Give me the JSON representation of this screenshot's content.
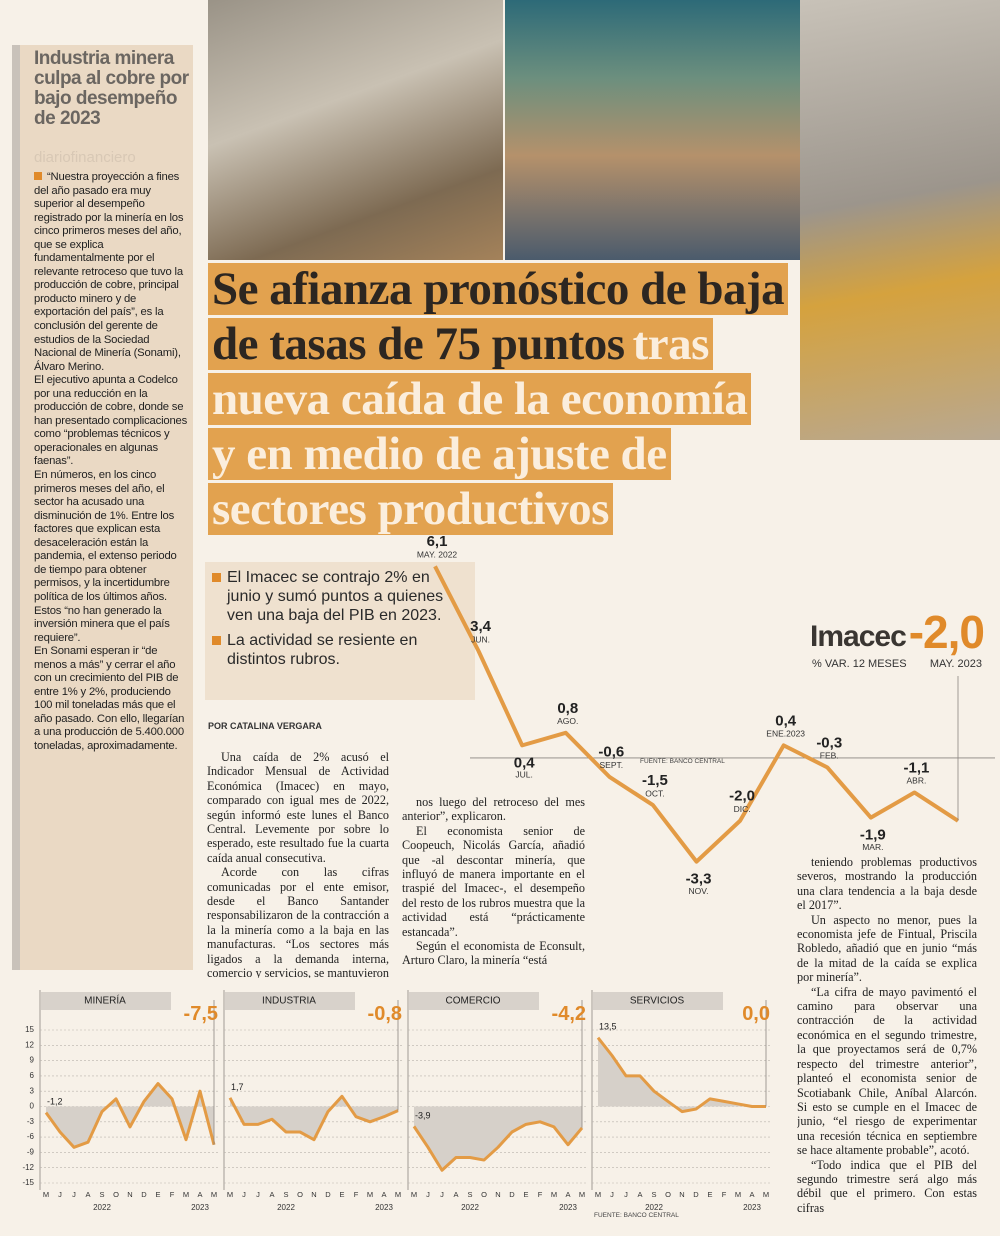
{
  "sidebar": {
    "title": "Industria minera culpa al cobre por bajo desempeño de 2023",
    "watermark": "diariofinanciero",
    "paragraphs": [
      "“Nuestra proyección a fines del año pasado era muy superior al desempeño registrado por la minería en los cinco primeros meses del año, que se explica fundamentalmente por el relevante retroceso que tuvo la producción de cobre, principal producto minero y de exportación del país”, es la conclusión del gerente de estudios de la Sociedad Nacional de Minería (Sonami), Álvaro Merino.",
      "El ejecutivo apunta a Codelco por una reducción en la producción de cobre, donde se han presentado complicaciones como “problemas técnicos y operacionales en algunas faenas”.",
      "En números, en los cinco primeros meses del año, el sector ha acusado una disminución de 1%. Entre los factores que explican esta desaceleración están la pandemia, el extenso periodo de tiempo para obtener permisos, y la incertidumbre política de los últimos años. Estos “no han generado la inversión minera que el país requiere”.",
      "En Sonami esperan ir “de menos a más” y cerrar el año con un crecimiento del PIB de entre 1% y 2%, produciendo 100 mil toneladas más que el año pasado. Con ello, llegarían a una producción de 5.400.000 toneladas, aproximadamente."
    ]
  },
  "headline": {
    "dark": [
      "Se afianza pronóstico de baja",
      "de tasas de 75 puntos"
    ],
    "light": [
      "tras",
      "nueva caída de la economía",
      "y en medio de ajuste de",
      "sectores productivos"
    ]
  },
  "bullets": [
    "El Imacec se contrajo 2% en junio y sumó puntos a quienes ven una baja del PIB en 2023.",
    "La actividad se resiente en distintos rubros."
  ],
  "byline": "POR CATALINA VERGARA",
  "columns": [
    [
      "Una caída de 2% acusó el Indicador Mensual de Actividad Económica (Imacec) en mayo, comparado con igual mes de 2022, según informó este lunes el Banco Central. Levemente por sobre lo esperado, este resultado fue la cuarta caída anual consecutiva.",
      "Acorde con las cifras comunicadas por el ente emisor, desde el Banco Santander responsabilizaron de la contracción a la la minería como a la baja en las manufacturas. “Los sectores más ligados a la demanda interna, comercio y servicios, se mantuvieron prácticamente pla-"
    ],
    [
      "nos luego del retroceso del mes anterior”, explicaron.",
      "El economista senior de Coopeuch, Nicolás García, añadió que -al descontar minería, que influyó de manera importante en el traspié del Imacec-, el desempeño del resto de los rubros muestra que la actividad está “prácticamente estancada”.",
      "Según el economista de Econsult, Arturo Claro, la minería “está"
    ],
    [
      "teniendo problemas productivos severos, mostrando la producción una clara tendencia a la baja desde el 2017”.",
      "Un aspecto no menor, pues la economista jefe de Fintual, Priscila Robledo, añadió que en junio “más de la mitad de la caída se explica por minería”.",
      "“La cifra de mayo pavimentó el camino para observar una contracción de la actividad económica en el segundo trimestre, la que proyectamos será de 0,7% respecto del trimestre anterior”, planteó el economista senior de Scotiabank Chile, Aníbal Alarcón. Si esto se cumple en el Imacec de junio, “el riesgo de experimentar una recesión técnica en septiembre se hace altamente probable”, acotó.",
      "“Todo indica que el PIB del segundo trimestre será algo más débil que el primero. Con estas cifras"
    ]
  ],
  "chart_data": [
    {
      "type": "line",
      "title": "Imacec",
      "subtitle": "% VAR. 12 MESES",
      "source": "FUENTE: BANCO CENTRAL",
      "categories": [
        "MAY. 2022",
        "JUN.",
        "JUL.",
        "AGO.",
        "SEPT.",
        "OCT.",
        "NOV.",
        "DIC.",
        "ENE.2023",
        "FEB.",
        "MAR.",
        "ABR.",
        "MAY. 2023"
      ],
      "values": [
        6.1,
        3.4,
        0.4,
        0.8,
        -0.6,
        -1.5,
        -3.3,
        -2.0,
        0.4,
        -0.3,
        -1.9,
        -1.1,
        -2.0
      ],
      "value_labels": [
        "6,1",
        "3,4",
        "0,4",
        "0,8",
        "-0,6",
        "-1,5",
        "-3,3",
        "-2,0",
        "0,4",
        "-0,3",
        "-1,9",
        "-1,1",
        "-2,0"
      ],
      "ylim": [
        -4,
        7
      ],
      "color": "#e39b45"
    },
    {
      "type": "area",
      "title": "MINERÍA",
      "categories": [
        "M",
        "J",
        "J",
        "A",
        "S",
        "O",
        "N",
        "D",
        "E",
        "F",
        "M",
        "A",
        "M"
      ],
      "year_labels": [
        "2022",
        "2023"
      ],
      "values": [
        -1.2,
        -5,
        -8,
        -7,
        -1,
        1.5,
        -4,
        1,
        4.5,
        1.5,
        -6.5,
        3,
        -7.5
      ],
      "value_labels": [
        "-1,2",
        null,
        null,
        null,
        null,
        null,
        null,
        null,
        null,
        null,
        null,
        null,
        "-7,5"
      ],
      "ylim": [
        -15,
        15
      ],
      "yticks": [
        15,
        12,
        9,
        6,
        3,
        0,
        -3,
        -6,
        -9,
        -12,
        -15
      ],
      "grid": true,
      "color": "#e39b45"
    },
    {
      "type": "area",
      "title": "INDUSTRIA",
      "categories": [
        "M",
        "J",
        "J",
        "A",
        "S",
        "O",
        "N",
        "D",
        "E",
        "F",
        "M",
        "A",
        "M"
      ],
      "year_labels": [
        "2022",
        "2023"
      ],
      "values": [
        1.7,
        -3.5,
        -3.5,
        -2.5,
        -5,
        -5,
        -6.5,
        -1,
        2,
        -2,
        -3,
        -2,
        -0.8
      ],
      "value_labels": [
        "1,7",
        null,
        null,
        null,
        null,
        null,
        null,
        null,
        null,
        null,
        null,
        null,
        "-0,8"
      ],
      "ylim": [
        -15,
        15
      ],
      "yticks": [
        15,
        12,
        9,
        6,
        3,
        0,
        -3,
        -6,
        -9,
        -12,
        -15
      ],
      "grid": true,
      "color": "#e39b45"
    },
    {
      "type": "area",
      "title": "COMERCIO",
      "categories": [
        "M",
        "J",
        "J",
        "A",
        "S",
        "O",
        "N",
        "D",
        "E",
        "F",
        "M",
        "A",
        "M"
      ],
      "year_labels": [
        "2022",
        "2023"
      ],
      "values": [
        -3.9,
        -8,
        -12.5,
        -10,
        -10,
        -10.5,
        -8,
        -5,
        -3.5,
        -3,
        -4,
        -7.5,
        -4.2
      ],
      "value_labels": [
        "-3,9",
        null,
        null,
        null,
        null,
        null,
        null,
        null,
        null,
        null,
        null,
        null,
        "-4,2"
      ],
      "ylim": [
        -15,
        15
      ],
      "yticks": [
        15,
        12,
        9,
        6,
        3,
        0,
        -3,
        -6,
        -9,
        -12,
        -15
      ],
      "grid": true,
      "color": "#e39b45"
    },
    {
      "type": "area",
      "title": "SERVICIOS",
      "source": "FUENTE: BANCO CENTRAL",
      "categories": [
        "M",
        "J",
        "J",
        "A",
        "S",
        "O",
        "N",
        "D",
        "E",
        "F",
        "M",
        "A",
        "M"
      ],
      "year_labels": [
        "2022",
        "2023"
      ],
      "values": [
        13.5,
        10,
        6,
        6,
        3,
        1,
        -1,
        -0.5,
        1.5,
        1,
        0.5,
        0,
        0.0
      ],
      "value_labels": [
        "13,5",
        null,
        null,
        null,
        null,
        null,
        null,
        null,
        null,
        null,
        null,
        null,
        "0,0"
      ],
      "ylim": [
        -15,
        15
      ],
      "yticks": [
        15,
        12,
        9,
        6,
        3,
        0,
        -3,
        -6,
        -9,
        -12,
        -15
      ],
      "grid": true,
      "color": "#e39b45"
    }
  ]
}
